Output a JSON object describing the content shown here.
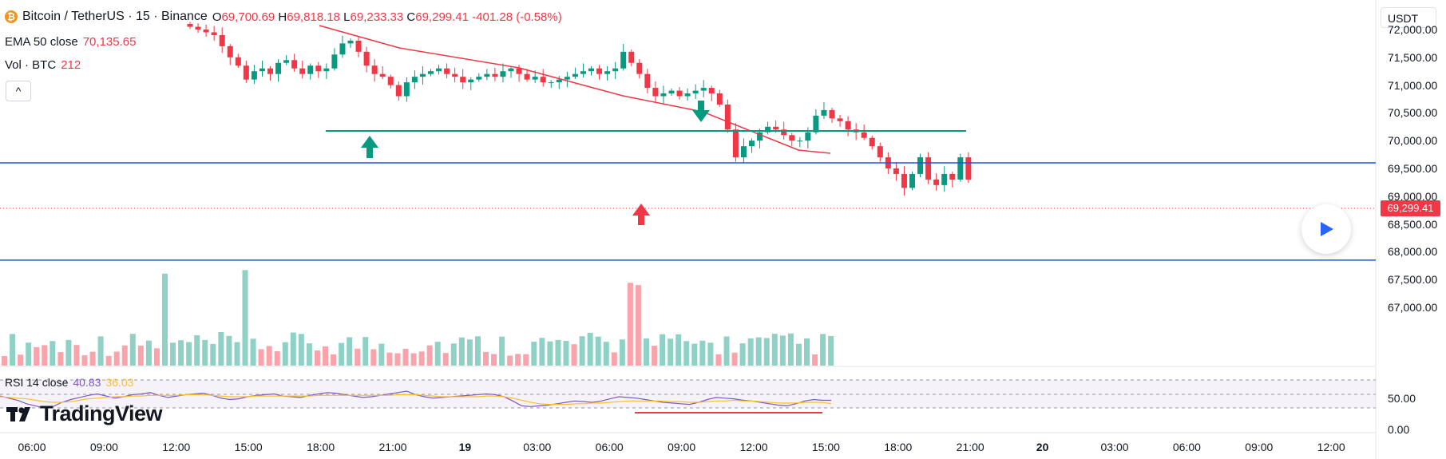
{
  "legend": {
    "symbol": "Bitcoin / TetherUS · 15 · Binance",
    "coin_icon": "bitcoin-icon",
    "open_key": "O",
    "open": "69,700.69",
    "high_key": "H",
    "high": "69,818.18",
    "low_key": "L",
    "low": "69,233.33",
    "close_key": "C",
    "close": "69,299.41",
    "change": "-401.28 (-0.58%)"
  },
  "ema": {
    "label": "EMA 50 close",
    "value": "70,135.65"
  },
  "volume": {
    "label": "Vol · BTC",
    "value": "212"
  },
  "collapse_icon": "chevron-up-icon",
  "rsi": {
    "label": "RSI 14 close",
    "value": "40.83",
    "ma_value": "36.03"
  },
  "currency": "USDT",
  "last_price": "69,299.41",
  "price_axis": [
    "72,000.00",
    "71,500.00",
    "71,000.00",
    "70,500.00",
    "70,000.00",
    "69,500.00",
    "69,000.00",
    "68,500.00",
    "68,000.00",
    "67,500.00",
    "67,000.00"
  ],
  "rsi_axis": [
    "50.00",
    "0.00"
  ],
  "time_axis": [
    {
      "t": "06:00",
      "bold": false
    },
    {
      "t": "09:00",
      "bold": false
    },
    {
      "t": "12:00",
      "bold": false
    },
    {
      "t": "15:00",
      "bold": false
    },
    {
      "t": "18:00",
      "bold": false
    },
    {
      "t": "21:00",
      "bold": false
    },
    {
      "t": "19",
      "bold": true
    },
    {
      "t": "03:00",
      "bold": false
    },
    {
      "t": "06:00",
      "bold": false
    },
    {
      "t": "09:00",
      "bold": false
    },
    {
      "t": "12:00",
      "bold": false
    },
    {
      "t": "15:00",
      "bold": false
    },
    {
      "t": "18:00",
      "bold": false
    },
    {
      "t": "21:00",
      "bold": false
    },
    {
      "t": "20",
      "bold": true
    },
    {
      "t": "03:00",
      "bold": false
    },
    {
      "t": "06:00",
      "bold": false
    },
    {
      "t": "09:00",
      "bold": false
    },
    {
      "t": "12:00",
      "bold": false
    }
  ],
  "logo_text": "TradingView",
  "play_icon": "play-icon",
  "colors": {
    "up": "#089981",
    "down": "#f23645",
    "ema": "#f23645",
    "hline": "#1e53e5",
    "support": "#089981",
    "rsi": "#7e57c2",
    "rsi_ma": "#fbc02d"
  },
  "chart_data": {
    "type": "candlestick",
    "candles_close": [
      72050,
      72000,
      71950,
      71900,
      71700,
      71500,
      71350,
      71100,
      71250,
      71300,
      71200,
      71400,
      71450,
      71300,
      71200,
      71350,
      71250,
      71300,
      71550,
      71750,
      71800,
      71600,
      71350,
      71200,
      71150,
      71000,
      70800,
      71050,
      71150,
      71200,
      71250,
      71300,
      71200,
      71150,
      71050,
      71100,
      71150,
      71200,
      71150,
      71250,
      71300,
      71200,
      71100,
      71150,
      71050,
      71050,
      71100,
      71150,
      71200,
      71250,
      71300,
      71200,
      71250,
      71300,
      71600,
      71400,
      71200,
      70950,
      70800,
      70850,
      70900,
      70800,
      70850,
      70900,
      70950,
      70850,
      70650,
      70200,
      69700,
      69900,
      70000,
      70150,
      70250,
      70200,
      70100,
      70000,
      70000,
      70150,
      70450,
      70550,
      70400,
      70350,
      70200,
      70150,
      70050,
      69900,
      69700,
      69500,
      69400,
      69150,
      69400,
      69700,
      69300,
      69200,
      69400,
      69300,
      69700,
      69299.41
    ],
    "ema50": [
      72150,
      71300,
      70950,
      70550,
      70120
    ],
    "support_line": 70500,
    "hlines": [
      69600,
      67850
    ],
    "rsi_values": [
      47,
      44,
      41,
      36,
      33,
      30,
      32,
      38,
      42,
      45,
      48,
      50,
      47,
      44,
      46,
      49,
      50,
      52,
      48,
      45,
      47,
      49,
      50,
      51,
      48,
      44,
      42,
      43,
      46,
      48,
      49,
      50,
      47,
      46,
      45,
      48,
      50,
      52,
      51,
      49,
      47,
      45,
      46,
      48,
      50,
      52,
      54,
      49,
      46,
      44,
      45,
      46,
      47,
      48,
      49,
      50,
      49,
      46,
      40,
      33,
      32,
      33,
      34,
      36,
      38,
      40,
      39,
      38,
      40,
      43,
      46,
      45,
      44,
      42,
      40,
      38,
      37,
      36,
      35,
      38,
      42,
      45,
      44,
      43,
      41,
      40,
      38,
      36,
      34,
      33,
      36,
      40,
      42,
      41,
      40.83
    ],
    "rsi_ma": [
      46,
      45,
      44,
      43,
      41,
      39,
      38,
      38,
      39,
      41,
      43,
      44,
      45,
      46,
      46,
      47,
      47,
      48,
      48,
      48,
      48,
      49,
      49,
      49,
      48,
      47,
      46,
      46,
      46,
      47,
      47,
      47,
      47,
      47,
      47,
      47,
      48,
      48,
      48,
      48,
      48,
      48,
      48,
      48,
      48,
      49,
      49,
      49,
      48,
      47,
      46,
      46,
      46,
      46,
      46,
      47,
      47,
      46,
      44,
      41,
      38,
      36,
      35,
      35,
      35,
      36,
      36,
      37,
      37,
      38,
      39,
      40,
      40,
      40,
      40,
      40,
      39,
      39,
      38,
      38,
      39,
      40,
      40,
      41,
      40,
      40,
      39,
      38,
      37,
      37,
      37,
      38,
      38,
      38,
      36.03
    ]
  }
}
